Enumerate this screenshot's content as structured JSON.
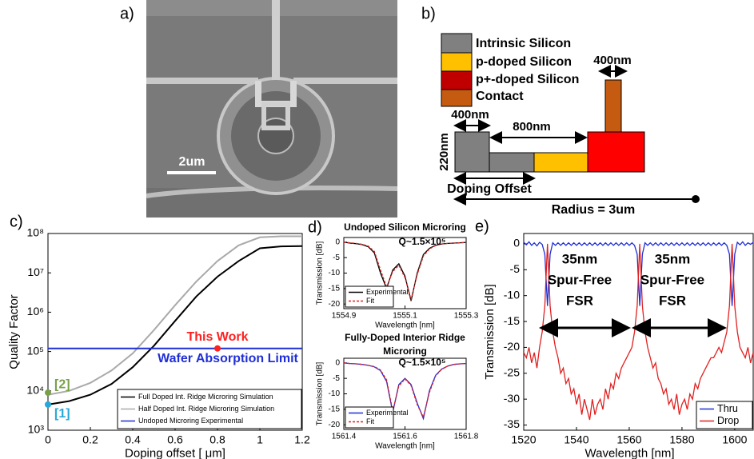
{
  "panel_a": {
    "label": "a)",
    "scale_bar": "2um"
  },
  "panel_b": {
    "label": "b)",
    "legend": [
      "Intrinsic Silicon",
      "p-doped Silicon",
      "p+-doped Silicon",
      "Contact"
    ],
    "contact_width": "400nm",
    "ridge_width": "400nm",
    "slab_width": "800nm",
    "height": "220nm",
    "offset": "Doping Offset",
    "radius": "Radius = 3um"
  },
  "chart_data": [
    {
      "type": "line",
      "panel": "c)",
      "xlabel": "Doping offset [ μm]",
      "ylabel": "Quality Factor",
      "yscale": "log",
      "legend": "lower right",
      "x": [
        0,
        0.1,
        0.2,
        0.3,
        0.4,
        0.5,
        0.6,
        0.7,
        0.8,
        0.9,
        1,
        1.1,
        1.2
      ],
      "series": [
        {
          "name": "Full Doped Int. Ridge Microring Simulation",
          "color": "#000000",
          "values": [
            4500,
            5500,
            8000,
            15000,
            40000,
            140000,
            600000,
            2500000,
            8000000,
            20000000,
            42000000,
            47000000,
            48000000
          ]
        },
        {
          "name": "Half Doped Int. Ridge Microring Simulation",
          "color": "#aaaaaa",
          "values": [
            8000,
            10000,
            16000,
            33000,
            90000,
            350000,
            1500000,
            6000000,
            20000000,
            50000000,
            80000000,
            85000000,
            85000000
          ]
        },
        {
          "name": "Undoped Microring Experimental",
          "color": "#1f2fd6",
          "values": [
            120000,
            120000,
            120000,
            120000,
            120000,
            120000,
            120000,
            120000,
            120000,
            120000,
            120000,
            120000,
            120000
          ]
        }
      ],
      "markers": [
        {
          "label": "This Work",
          "x": 0.8,
          "y": 120000,
          "color": "#ff2020"
        },
        {
          "label": "[2]",
          "x": 0,
          "y": 9000,
          "color": "#78a048"
        },
        {
          "label": "[1]",
          "x": 0,
          "y": 4500,
          "color": "#28a8d8"
        }
      ],
      "annotations": [
        "Wafer Absorption Limit"
      ],
      "xlim": [
        0,
        1.2
      ],
      "xticks": [
        0,
        0.2,
        0.4,
        0.6,
        0.8,
        1,
        1.2
      ],
      "ylim": [
        1000,
        100000000
      ],
      "yticks": [
        {
          "value": 1000,
          "label": "10³"
        },
        {
          "value": 10000,
          "label": "10⁴"
        },
        {
          "value": 100000,
          "label": "10⁵"
        },
        {
          "value": 1000000,
          "label": "10⁶"
        },
        {
          "value": 10000000,
          "label": "10⁷"
        },
        {
          "value": 100000000,
          "label": "10⁸"
        }
      ]
    },
    {
      "type": "line",
      "panel": "d)",
      "title": [
        "Undoped Silicon Microring"
      ],
      "xlabel": "Wavelength [nm]",
      "ylabel": "Transmission [dB]",
      "legend": "lower left",
      "annotations": [
        "Q~1.5×10⁵"
      ],
      "x": [
        1554.9,
        1554.92,
        1554.94,
        1554.96,
        1554.98,
        1555,
        1555.02,
        1555.04,
        1555.06,
        1555.08,
        1555.1,
        1555.12,
        1555.14,
        1555.16,
        1555.18,
        1555.2,
        1555.22,
        1555.24,
        1555.26,
        1555.28,
        1555.3
      ],
      "series": [
        {
          "name": "Experimental",
          "color": "#000000",
          "values": [
            0,
            -0.3,
            -0.5,
            -0.8,
            -1.5,
            -3.5,
            -10,
            -15,
            -9,
            -7,
            -11,
            -19,
            -10,
            -4,
            -2,
            -1,
            -0.6,
            -0.4,
            -0.3,
            -0.2,
            -0.1
          ]
        },
        {
          "name": "Fit",
          "color": "#e02020",
          "linestyle": "dashed",
          "values": [
            0,
            -0.2,
            -0.4,
            -0.7,
            -1.3,
            -3,
            -9,
            -14.5,
            -9.5,
            -7.5,
            -11.5,
            -18.5,
            -10.5,
            -4.5,
            -2.2,
            -1.1,
            -0.6,
            -0.4,
            -0.3,
            -0.2,
            -0.1
          ]
        }
      ],
      "xlim": [
        1554.9,
        1555.3
      ],
      "xticks": [
        1554.9,
        1555.1,
        1555.3
      ],
      "ylim": [
        -21.5,
        1.5
      ],
      "yticks": [
        0,
        -5,
        -10,
        -15,
        -20
      ]
    },
    {
      "type": "line",
      "title": [
        "Fully-Doped Interior Ridge",
        "Microring"
      ],
      "xlabel": "Wavelength [nm]",
      "ylabel": "Transmission [dB]",
      "legend": "lower left",
      "annotations": [
        "Q~1.5×10⁵"
      ],
      "x": [
        1561.4,
        1561.42,
        1561.44,
        1561.46,
        1561.48,
        1561.5,
        1561.52,
        1561.54,
        1561.56,
        1561.58,
        1561.6,
        1561.62,
        1561.64,
        1561.66,
        1561.68,
        1561.7,
        1561.72,
        1561.74,
        1561.76,
        1561.78,
        1561.8
      ],
      "series": [
        {
          "name": "Experimental",
          "color": "#1f2fd6",
          "values": [
            0,
            -0.2,
            -0.3,
            -0.5,
            -0.8,
            -1.3,
            -2.5,
            -6,
            -16,
            -7,
            -5,
            -7,
            -13,
            -18,
            -9,
            -4,
            -2,
            -1,
            -0.5,
            -0.3,
            -0.2
          ]
        },
        {
          "name": "Fit",
          "color": "#e02020",
          "linestyle": "dashed",
          "values": [
            0,
            -0.2,
            -0.3,
            -0.5,
            -0.8,
            -1.2,
            -2.3,
            -5.5,
            -15.5,
            -7.5,
            -5.2,
            -7.3,
            -13.5,
            -17.5,
            -9.5,
            -4.2,
            -2.1,
            -1,
            -0.5,
            -0.3,
            -0.2
          ]
        }
      ],
      "xlim": [
        1561.4,
        1561.8
      ],
      "xticks": [
        1561.4,
        1561.6,
        1561.8
      ],
      "ylim": [
        -21.5,
        1.5
      ],
      "yticks": [
        0,
        -5,
        -10,
        -15,
        -20
      ]
    },
    {
      "type": "line",
      "panel": "e)",
      "xlabel": "Wavelength [nm]",
      "ylabel": "Transmission [dB]",
      "legend": "lower right",
      "annotations": [
        [
          "35nm",
          "Spur-Free",
          "FSR"
        ],
        [
          "35nm",
          "Spur-Free",
          "FSR"
        ]
      ],
      "x": [
        1520,
        1521,
        1522,
        1523,
        1524,
        1525,
        1526,
        1527,
        1528,
        1529,
        1530,
        1531,
        1532,
        1533,
        1534,
        1535,
        1536,
        1537,
        1538,
        1539,
        1540,
        1541,
        1542,
        1543,
        1544,
        1545,
        1546,
        1547,
        1548,
        1549,
        1550,
        1551,
        1552,
        1553,
        1554,
        1555,
        1556,
        1557,
        1558,
        1559,
        1560,
        1561,
        1562,
        1563,
        1564,
        1565,
        1566,
        1567,
        1568,
        1569,
        1570,
        1571,
        1572,
        1573,
        1574,
        1575,
        1576,
        1577,
        1578,
        1579,
        1580,
        1581,
        1582,
        1583,
        1584,
        1585,
        1586,
        1587,
        1588,
        1589,
        1590,
        1591,
        1592,
        1593,
        1594,
        1595,
        1596,
        1597,
        1598,
        1599,
        1600,
        1601,
        1602,
        1603,
        1604,
        1605,
        1606,
        1607
      ],
      "series": [
        {
          "name": "Thru",
          "color": "#1f2fd6",
          "values": [
            0.3,
            -0.2,
            0.4,
            -0.3,
            0.2,
            -0.4,
            0.3,
            -0.1,
            -2,
            -12,
            -2,
            0.2,
            -0.3,
            0.2,
            -0.3,
            0.2,
            -0.3,
            0.2,
            -0.3,
            0.2,
            -0.3,
            0.2,
            -0.3,
            0.2,
            -0.3,
            0.2,
            -0.3,
            0.2,
            -0.3,
            0.2,
            -0.3,
            0.2,
            -0.3,
            0.2,
            -0.3,
            0.2,
            -0.3,
            0.2,
            -0.3,
            0.2,
            -0.3,
            0.2,
            -0.3,
            -2,
            -12,
            -2,
            0.2,
            -0.3,
            0.2,
            -0.3,
            0.2,
            -0.3,
            0.2,
            -0.3,
            0.2,
            -0.3,
            0.2,
            -0.3,
            0.2,
            -0.3,
            0.2,
            -0.3,
            0.2,
            -0.3,
            0.2,
            -0.3,
            0.2,
            -0.3,
            0.2,
            -0.3,
            0.2,
            -0.3,
            0.2,
            -0.3,
            0.2,
            -0.3,
            0.2,
            -0.3,
            -2,
            -12,
            -2,
            0.3,
            -0.2,
            0.4,
            -0.3,
            0.2,
            -0.1,
            0.3
          ]
        },
        {
          "name": "Drop",
          "color": "#e02020",
          "values": [
            -21,
            -22,
            -20,
            -23,
            -21,
            -24,
            -20,
            -17,
            -12,
            0,
            -12,
            -17,
            -20,
            -22,
            -25,
            -24,
            -27,
            -26,
            -29,
            -28,
            -31,
            -29,
            -33,
            -30,
            -32,
            -34,
            -30,
            -33,
            -31,
            -30,
            -32,
            -28,
            -30,
            -27,
            -28,
            -25,
            -26,
            -24,
            -23,
            -22,
            -21,
            -20,
            -17,
            -12,
            0,
            -12,
            -17,
            -20,
            -22,
            -24,
            -23,
            -26,
            -27,
            -29,
            -28,
            -31,
            -30,
            -32,
            -29,
            -33,
            -31,
            -30,
            -32,
            -29,
            -30,
            -27,
            -28,
            -26,
            -25,
            -24,
            -23,
            -22,
            -22,
            -21,
            -20,
            -21,
            -19,
            -17,
            -12,
            0,
            -12,
            -17,
            -20,
            -21,
            -22,
            -20,
            -23,
            -21
          ]
        }
      ],
      "xlim": [
        1520,
        1607
      ],
      "xticks": [
        1520,
        1540,
        1560,
        1580,
        1600
      ],
      "ylim": [
        -36,
        2
      ],
      "yticks": [
        0,
        -5,
        -10,
        -15,
        -20,
        -25,
        -30,
        -35
      ]
    }
  ]
}
